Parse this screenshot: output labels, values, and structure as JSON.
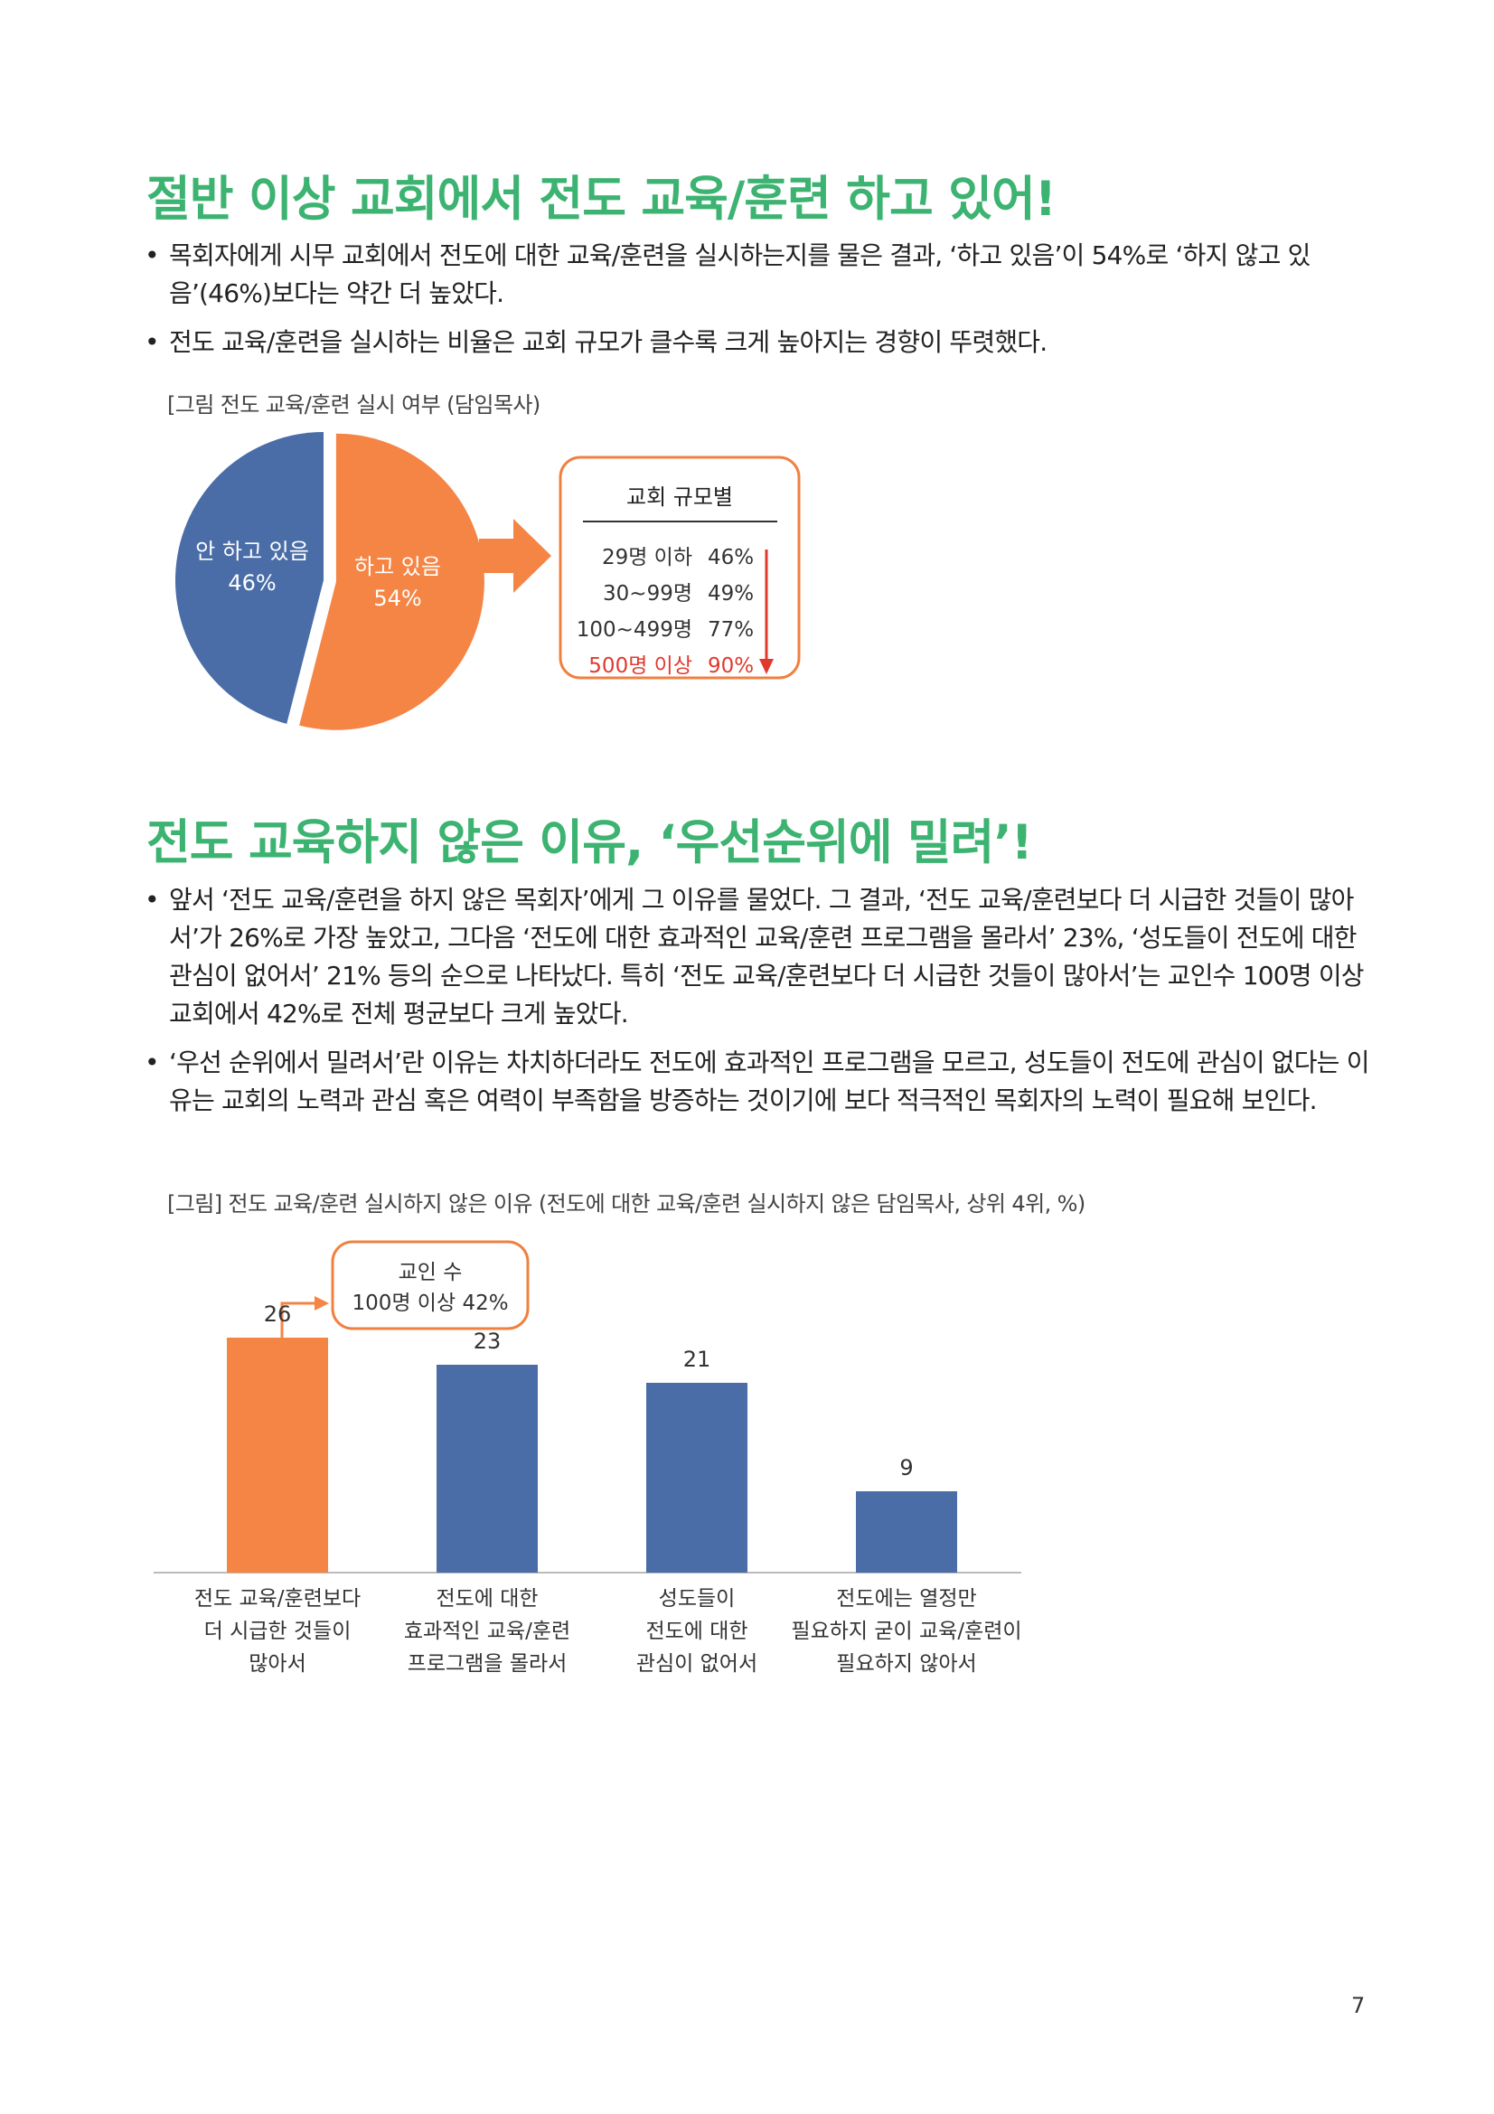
{
  "section1": {
    "title": "절반 이상 교회에서 전도 교육/훈련 하고 있어!",
    "bullets": [
      "목회자에게 시무 교회에서 전도에 대한 교육/훈련을 실시하는지를 물은 결과, ‘하고 있음’이 54%로 ‘하지 않고 있음’(46%)보다는 약간 더 높았다.",
      "전도 교육/훈련을 실시하는 비율은 교회 규모가 클수록 크게 높아지는 경향이 뚜렷했다."
    ],
    "caption": "[그림 전도 교육/훈련 실시 여부 (담임목사)"
  },
  "pie": {
    "slices": [
      {
        "label": "하고 있음",
        "value_label": "54%",
        "value": 54,
        "color": "#f58544"
      },
      {
        "label": "안 하고 있음",
        "value_label": "46%",
        "value": 46,
        "color": "#4a6da7"
      }
    ]
  },
  "size_box": {
    "title": "교회 규모별",
    "rows": [
      {
        "size": "29명 이하",
        "value": "46%"
      },
      {
        "size": "30~99명",
        "value": "49%"
      },
      {
        "size": "100~499명",
        "value": "77%"
      },
      {
        "size": "500명 이상",
        "value": "90%"
      }
    ],
    "highlight_color": "#e03a2f",
    "border_color": "#f08040"
  },
  "section2": {
    "title": "전도 교육하지 않은 이유, ‘우선순위에 밀려’!",
    "bullets": [
      "앞서 ‘전도 교육/훈련을 하지 않은 목회자’에게 그 이유를 물었다. 그 결과, ‘전도 교육/훈련보다 더 시급한 것들이 많아서’가 26%로 가장 높았고, 그다음 ‘전도에 대한 효과적인 교육/훈련 프로그램을 몰라서’ 23%, ‘성도들이 전도에 대한 관심이 없어서’ 21% 등의 순으로 나타났다. 특히 ‘전도 교육/훈련보다 더 시급한 것들이 많아서’는 교인수 100명 이상 교회에서 42%로 전체 평균보다 크게 높았다.",
      "‘우선 순위에서 밀려서’란 이유는 차치하더라도 전도에 효과적인 프로그램을 모르고, 성도들이 전도에 관심이 없다는 이유는 교회의 노력과 관심 혹은 여력이 부족함을 방증하는 것이기에 보다 적극적인 목회자의 노력이 필요해 보인다."
    ],
    "caption": "[그림] 전도 교육/훈련 실시하지 않은 이유 (전도에 대한 교육/훈련 실시하지 않은 담임목사, 상위 4위, %)"
  },
  "chart_data": {
    "type": "bar",
    "categories": [
      [
        "전도 교육/훈련보다",
        "더 시급한 것들이",
        "많아서"
      ],
      [
        "전도에 대한",
        "효과적인 교육/훈련",
        "프로그램을 몰라서"
      ],
      [
        "성도들이",
        "전도에 대한",
        "관심이 없어서"
      ],
      [
        "전도에는 열정만",
        "필요하지 굳이 교육/훈련이",
        "필요하지 않아서"
      ]
    ],
    "values": [
      26,
      23,
      21,
      9
    ],
    "colors": [
      "#f58544",
      "#4a6da7",
      "#4a6da7",
      "#4a6da7"
    ],
    "ylim": [
      0,
      30
    ],
    "annotation": [
      "교인 수",
      "100명 이상 42%"
    ]
  },
  "page_number": "7"
}
